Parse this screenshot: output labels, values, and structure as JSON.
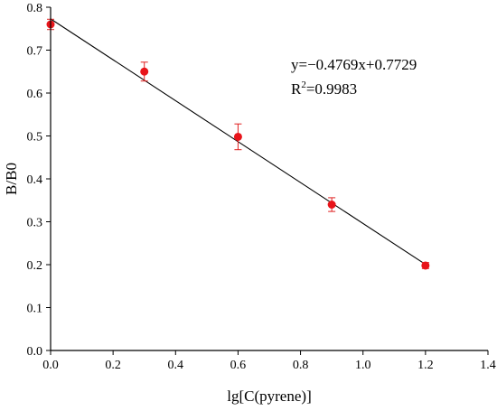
{
  "chart_data": {
    "type": "scatter",
    "xlabel": "lg[C(pyrene)]",
    "ylabel": "B/B0",
    "xlim": [
      0.0,
      1.4
    ],
    "ylim": [
      0.0,
      0.8
    ],
    "x_ticks": [
      "0.0",
      "0.2",
      "0.4",
      "0.6",
      "0.8",
      "1.0",
      "1.2",
      "1.4"
    ],
    "y_ticks": [
      "0.0",
      "0.1",
      "0.2",
      "0.3",
      "0.4",
      "0.5",
      "0.6",
      "0.7",
      "0.8"
    ],
    "series": [
      {
        "x": [
          0.0,
          0.3,
          0.6,
          0.9,
          1.2
        ],
        "y": [
          0.76,
          0.65,
          0.498,
          0.34,
          0.198
        ],
        "error": [
          0.012,
          0.022,
          0.03,
          0.016,
          0.007
        ],
        "color": "#e8141a"
      }
    ],
    "fit": {
      "slope": -0.4769,
      "intercept": 0.7729,
      "x_range": [
        0.0,
        1.2
      ],
      "color": "#000000"
    },
    "annotation": {
      "equation": "y=−0.4769x+0.7729",
      "r2_prefix": "R",
      "r2_sup": "2",
      "r2_value": "=0.9983"
    },
    "grid": false,
    "legend": "none"
  }
}
